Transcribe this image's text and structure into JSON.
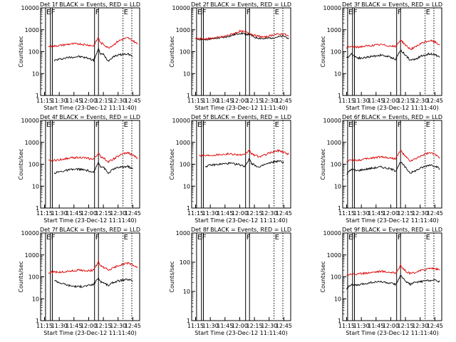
{
  "figure": {
    "xlabel_default": "Start Time (23-Dec-12 11:11:40)",
    "ylabel_default": "Counts/sec",
    "x_ticks": [
      "11:15",
      "11:30",
      "11:45",
      "12:00",
      "12:15",
      "12:30",
      "12:45"
    ],
    "y_ticks": [
      "1",
      "10",
      "100",
      "1000",
      "10000"
    ],
    "colors": {
      "events": "#000000",
      "lld": "#dd0000",
      "axes": "#000000",
      "background": "#ffffff"
    }
  },
  "chart_data": [
    {
      "type": "line",
      "title": "Det 1f BLACK = Events, RED = LLD",
      "xlabel": "Start Time (23-Dec-12 11:11:40)",
      "ylabel": "Counts/sec",
      "ylog": true,
      "ylim": [
        1,
        10000
      ],
      "xlim": [
        "11:11",
        "12:52"
      ],
      "markers": [
        {
          "time": "11:16",
          "label": "E",
          "style": "solid"
        },
        {
          "time": "11:21",
          "label": "F",
          "style": "solid"
        },
        {
          "time": "11:23",
          "label": "",
          "style": "solid"
        },
        {
          "time": "12:06",
          "label": "F",
          "style": "solid"
        },
        {
          "time": "12:10",
          "label": "",
          "style": "solid"
        },
        {
          "time": "12:35",
          "label": "E",
          "style": "dotted"
        },
        {
          "time": "12:44",
          "label": "",
          "style": "dotted"
        }
      ],
      "x": [
        "11:19",
        "11:25",
        "11:30",
        "11:40",
        "11:50",
        "12:00",
        "12:05",
        "12:10",
        "12:12",
        "12:15",
        "12:20",
        "12:25",
        "12:30",
        "12:35",
        "12:40",
        "12:45",
        "12:50"
      ],
      "series": [
        {
          "name": "Events",
          "color": "#000000",
          "values": [
            null,
            40,
            45,
            55,
            60,
            50,
            40,
            130,
            80,
            75,
            38,
            60,
            70,
            75,
            80,
            60,
            null
          ]
        },
        {
          "name": "LLD",
          "color": "#dd0000",
          "values": [
            170,
            180,
            190,
            220,
            230,
            200,
            180,
            450,
            250,
            220,
            150,
            200,
            300,
            380,
            420,
            320,
            220
          ]
        }
      ]
    },
    {
      "type": "line",
      "title": "Det 2f BLACK = Events, RED = LLD",
      "xlabel": "Start Time (23-Dec-12 11:11:40)",
      "ylabel": "Counts/sec",
      "ylog": true,
      "ylim": [
        1,
        10000
      ],
      "xlim": [
        "11:11",
        "12:52"
      ],
      "markers": [
        {
          "time": "11:16",
          "label": "E",
          "style": "solid"
        },
        {
          "time": "11:21",
          "label": "F",
          "style": "solid"
        },
        {
          "time": "11:23",
          "label": "",
          "style": "solid"
        },
        {
          "time": "12:06",
          "label": "F",
          "style": "solid"
        },
        {
          "time": "12:10",
          "label": "",
          "style": "solid"
        },
        {
          "time": "12:35",
          "label": "E",
          "style": "dotted"
        },
        {
          "time": "12:44",
          "label": "",
          "style": "dotted"
        }
      ],
      "x": [
        "11:15",
        "11:25",
        "11:35",
        "11:45",
        "11:55",
        "12:00",
        "12:05",
        "12:10",
        "12:15",
        "12:25",
        "12:35",
        "12:45",
        "12:50"
      ],
      "series": [
        {
          "name": "Events",
          "color": "#000000",
          "values": [
            380,
            360,
            400,
            450,
            600,
            700,
            650,
            600,
            450,
            380,
            450,
            500,
            420
          ]
        },
        {
          "name": "LLD",
          "color": "#dd0000",
          "values": [
            400,
            380,
            420,
            500,
            700,
            850,
            800,
            700,
            550,
            450,
            600,
            650,
            500
          ]
        }
      ]
    },
    {
      "type": "line",
      "title": "Det 3f BLACK = Events, RED = LLD",
      "xlabel": "Start Time (23-Dec-12 11:11:40)",
      "ylabel": "Counts/sec",
      "ylog": true,
      "ylim": [
        1,
        10000
      ],
      "xlim": [
        "11:11",
        "12:52"
      ],
      "markers": [
        {
          "time": "11:16",
          "label": "E",
          "style": "solid"
        },
        {
          "time": "11:21",
          "label": "F",
          "style": "solid"
        },
        {
          "time": "11:23",
          "label": "",
          "style": "solid"
        },
        {
          "time": "12:06",
          "label": "F",
          "style": "solid"
        },
        {
          "time": "12:10",
          "label": "",
          "style": "solid"
        },
        {
          "time": "12:35",
          "label": "E",
          "style": "dotted"
        },
        {
          "time": "12:44",
          "label": "",
          "style": "dotted"
        }
      ],
      "x": [
        "11:15",
        "11:20",
        "11:25",
        "11:30",
        "11:40",
        "11:50",
        "12:00",
        "12:05",
        "12:10",
        "12:15",
        "12:20",
        "12:25",
        "12:30",
        "12:35",
        "12:40",
        "12:45",
        "12:50"
      ],
      "series": [
        {
          "name": "Events",
          "color": "#000000",
          "values": [
            50,
            80,
            55,
            50,
            60,
            70,
            55,
            45,
            120,
            70,
            40,
            45,
            60,
            70,
            80,
            75,
            55
          ]
        },
        {
          "name": "LLD",
          "color": "#dd0000",
          "values": [
            150,
            170,
            160,
            170,
            190,
            210,
            180,
            170,
            350,
            200,
            130,
            160,
            220,
            280,
            320,
            280,
            200
          ]
        }
      ]
    },
    {
      "type": "line",
      "title": "Det 4f BLACK = Events, RED = LLD",
      "xlabel": "Start Time (23-Dec-12 11:11:40)",
      "ylabel": "Counts/sec",
      "ylog": true,
      "ylim": [
        1,
        10000
      ],
      "xlim": [
        "11:11",
        "12:52"
      ],
      "markers": [
        {
          "time": "11:16",
          "label": "E",
          "style": "solid"
        },
        {
          "time": "11:21",
          "label": "F",
          "style": "solid"
        },
        {
          "time": "11:23",
          "label": "",
          "style": "solid"
        },
        {
          "time": "12:06",
          "label": "F",
          "style": "solid"
        },
        {
          "time": "12:10",
          "label": "",
          "style": "solid"
        },
        {
          "time": "12:35",
          "label": "E",
          "style": "dotted"
        },
        {
          "time": "12:44",
          "label": "",
          "style": "dotted"
        }
      ],
      "x": [
        "11:19",
        "11:25",
        "11:30",
        "11:40",
        "11:50",
        "12:00",
        "12:05",
        "12:10",
        "12:12",
        "12:15",
        "12:20",
        "12:25",
        "12:30",
        "12:35",
        "12:40",
        "12:45",
        "12:50"
      ],
      "series": [
        {
          "name": "Events",
          "color": "#000000",
          "values": [
            null,
            40,
            45,
            55,
            60,
            50,
            40,
            130,
            80,
            75,
            38,
            60,
            70,
            75,
            80,
            60,
            null
          ]
        },
        {
          "name": "LLD",
          "color": "#dd0000",
          "values": [
            140,
            150,
            160,
            190,
            210,
            180,
            170,
            320,
            220,
            200,
            130,
            170,
            230,
            300,
            330,
            260,
            190
          ]
        }
      ]
    },
    {
      "type": "line",
      "title": "Det 5f BLACK = Events, RED = LLD",
      "xlabel": "Start Time (23-Dec-12 11:11:40)",
      "ylabel": "Counts/sec",
      "ylog": true,
      "ylim": [
        1,
        10000
      ],
      "xlim": [
        "11:11",
        "12:52"
      ],
      "markers": [
        {
          "time": "11:16",
          "label": "E",
          "style": "solid"
        },
        {
          "time": "11:21",
          "label": "F",
          "style": "solid"
        },
        {
          "time": "11:23",
          "label": "",
          "style": "solid"
        },
        {
          "time": "12:06",
          "label": "F",
          "style": "solid"
        },
        {
          "time": "12:10",
          "label": "",
          "style": "solid"
        },
        {
          "time": "12:35",
          "label": "E",
          "style": "dotted"
        },
        {
          "time": "12:44",
          "label": "",
          "style": "dotted"
        }
      ],
      "x": [
        "11:19",
        "11:25",
        "11:30",
        "11:40",
        "11:50",
        "12:00",
        "12:05",
        "12:10",
        "12:12",
        "12:15",
        "12:20",
        "12:25",
        "12:30",
        "12:35",
        "12:40",
        "12:45",
        "12:50"
      ],
      "series": [
        {
          "name": "Events",
          "color": "#000000",
          "values": [
            null,
            80,
            90,
            100,
            110,
            95,
            80,
            180,
            110,
            95,
            70,
            95,
            110,
            130,
            140,
            120,
            null
          ]
        },
        {
          "name": "LLD",
          "color": "#dd0000",
          "values": [
            260,
            250,
            260,
            280,
            300,
            270,
            260,
            450,
            300,
            260,
            220,
            260,
            320,
            380,
            420,
            360,
            280
          ]
        }
      ]
    },
    {
      "type": "line",
      "title": "Det 6f BLACK = Events, RED = LLD",
      "xlabel": "Start Time (23-Dec-12 11:11:40)",
      "ylabel": "Counts/sec",
      "ylog": true,
      "ylim": [
        1,
        10000
      ],
      "xlim": [
        "11:11",
        "12:52"
      ],
      "markers": [
        {
          "time": "11:16",
          "label": "E",
          "style": "solid"
        },
        {
          "time": "11:21",
          "label": "F",
          "style": "solid"
        },
        {
          "time": "11:23",
          "label": "",
          "style": "solid"
        },
        {
          "time": "12:06",
          "label": "F",
          "style": "solid"
        },
        {
          "time": "12:10",
          "label": "",
          "style": "solid"
        },
        {
          "time": "12:35",
          "label": "E",
          "style": "dotted"
        },
        {
          "time": "12:44",
          "label": "",
          "style": "dotted"
        }
      ],
      "x": [
        "11:15",
        "11:20",
        "11:25",
        "11:30",
        "11:40",
        "11:50",
        "12:00",
        "12:05",
        "12:10",
        "12:15",
        "12:20",
        "12:25",
        "12:30",
        "12:35",
        "12:40",
        "12:45",
        "12:50"
      ],
      "series": [
        {
          "name": "Events",
          "color": "#000000",
          "values": [
            35,
            60,
            50,
            55,
            65,
            75,
            60,
            50,
            130,
            70,
            40,
            50,
            65,
            80,
            95,
            85,
            60
          ]
        },
        {
          "name": "LLD",
          "color": "#dd0000",
          "values": [
            130,
            160,
            150,
            160,
            190,
            220,
            190,
            180,
            420,
            220,
            140,
            170,
            230,
            290,
            330,
            280,
            200
          ]
        }
      ]
    },
    {
      "type": "line",
      "title": "Det 7f BLACK = Events, RED = LLD",
      "xlabel": "Start Time (23-Dec-12 11:11:40)",
      "ylabel": "Counts/sec",
      "ylog": true,
      "ylim": [
        1,
        10000
      ],
      "xlim": [
        "11:11",
        "12:52"
      ],
      "markers": [
        {
          "time": "11:16",
          "label": "E",
          "style": "solid"
        },
        {
          "time": "11:21",
          "label": "F",
          "style": "solid"
        },
        {
          "time": "11:23",
          "label": "",
          "style": "solid"
        },
        {
          "time": "12:06",
          "label": "F",
          "style": "solid"
        },
        {
          "time": "12:10",
          "label": "",
          "style": "solid"
        },
        {
          "time": "12:35",
          "label": "E",
          "style": "dotted"
        },
        {
          "time": "12:44",
          "label": "",
          "style": "dotted"
        }
      ],
      "x": [
        "11:19",
        "11:25",
        "11:30",
        "11:40",
        "11:50",
        "12:00",
        "12:05",
        "12:10",
        "12:12",
        "12:15",
        "12:20",
        "12:25",
        "12:30",
        "12:35",
        "12:40",
        "12:45",
        "12:50"
      ],
      "series": [
        {
          "name": "Events",
          "color": "#000000",
          "values": [
            null,
            70,
            55,
            40,
            35,
            40,
            45,
            90,
            60,
            55,
            40,
            55,
            65,
            70,
            75,
            65,
            null
          ]
        },
        {
          "name": "LLD",
          "color": "#dd0000",
          "values": [
            150,
            170,
            160,
            180,
            200,
            190,
            200,
            500,
            300,
            280,
            200,
            250,
            320,
            380,
            420,
            340,
            260
          ]
        }
      ]
    },
    {
      "type": "line",
      "title": "Det 8f BLACK = Events, RED = LLD",
      "xlabel": "Start Time (23-Dec-12 11:11:40)",
      "ylabel": "Counts/sec",
      "ylog": true,
      "ylim": [
        1,
        1000
      ],
      "xlim": [
        "11:11",
        "12:52"
      ],
      "markers": [
        {
          "time": "11:16",
          "label": "E",
          "style": "solid"
        },
        {
          "time": "11:21",
          "label": "F",
          "style": "solid"
        },
        {
          "time": "11:23",
          "label": "",
          "style": "solid"
        },
        {
          "time": "12:06",
          "label": "F",
          "style": "solid"
        },
        {
          "time": "12:10",
          "label": "",
          "style": "solid"
        },
        {
          "time": "12:35",
          "label": "E",
          "style": "dotted"
        },
        {
          "time": "12:44",
          "label": "",
          "style": "dotted"
        }
      ],
      "x": [],
      "series": []
    },
    {
      "type": "line",
      "title": "Det 9f BLACK = Events, RED = LLD",
      "xlabel": "Start Time (23-Dec-12 11:11:40)",
      "ylabel": "Counts/sec",
      "ylog": true,
      "ylim": [
        1,
        10000
      ],
      "xlim": [
        "11:11",
        "12:52"
      ],
      "markers": [
        {
          "time": "11:16",
          "label": "E",
          "style": "solid"
        },
        {
          "time": "11:21",
          "label": "F",
          "style": "solid"
        },
        {
          "time": "11:23",
          "label": "",
          "style": "solid"
        },
        {
          "time": "12:06",
          "label": "F",
          "style": "solid"
        },
        {
          "time": "12:10",
          "label": "",
          "style": "solid"
        },
        {
          "time": "12:35",
          "label": "E",
          "style": "dotted"
        },
        {
          "time": "12:44",
          "label": "",
          "style": "dotted"
        }
      ],
      "x": [
        "11:15",
        "11:20",
        "11:25",
        "11:30",
        "11:40",
        "11:50",
        "12:00",
        "12:05",
        "12:10",
        "12:15",
        "12:20",
        "12:25",
        "12:30",
        "12:35",
        "12:40",
        "12:45",
        "12:50"
      ],
      "series": [
        {
          "name": "Events",
          "color": "#000000",
          "values": [
            30,
            45,
            40,
            45,
            55,
            60,
            50,
            45,
            110,
            65,
            45,
            55,
            60,
            65,
            70,
            70,
            60
          ]
        },
        {
          "name": "LLD",
          "color": "#dd0000",
          "values": [
            120,
            140,
            130,
            140,
            160,
            180,
            160,
            150,
            320,
            180,
            140,
            160,
            190,
            220,
            250,
            240,
            200
          ]
        }
      ]
    }
  ]
}
